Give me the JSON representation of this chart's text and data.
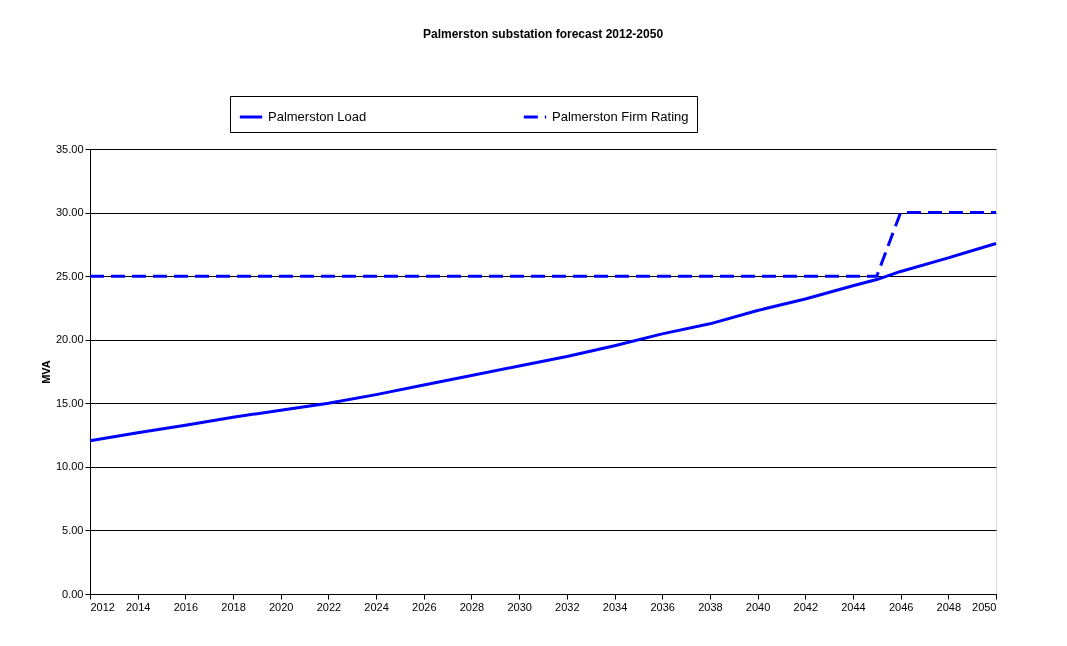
{
  "chart_data": {
    "type": "line",
    "title": "Palmerston substation forecast 2012-2050",
    "ylabel": "MVA",
    "xlim": [
      2012,
      2050
    ],
    "xticks": [
      2012,
      2014,
      2016,
      2018,
      2020,
      2022,
      2024,
      2026,
      2028,
      2030,
      2032,
      2034,
      2036,
      2038,
      2040,
      2042,
      2044,
      2046,
      2048,
      2050
    ],
    "ylim": [
      0,
      35
    ],
    "yticks": [
      {
        "value": 0,
        "label": "0.00"
      },
      {
        "value": 5,
        "label": "5.00"
      },
      {
        "value": 10,
        "label": "10.00"
      },
      {
        "value": 15,
        "label": "15.00"
      },
      {
        "value": 20,
        "label": "20.00"
      },
      {
        "value": 25,
        "label": "25.00"
      },
      {
        "value": 30,
        "label": "30.00"
      },
      {
        "value": 35,
        "label": "35.00"
      }
    ],
    "grid": "y",
    "legend": "top",
    "marker": "none",
    "series": [
      {
        "name": "Palmerston Load",
        "color": "#0000ff",
        "line_style": "solid",
        "x": [
          2012,
          2014,
          2016,
          2018,
          2020,
          2022,
          2024,
          2026,
          2028,
          2030,
          2032,
          2034,
          2036,
          2038,
          2040,
          2042,
          2044,
          2045,
          2046,
          2048,
          2050
        ],
        "values": [
          12.06,
          12.68,
          13.28,
          13.9,
          14.46,
          15.0,
          15.68,
          16.44,
          17.18,
          17.94,
          18.68,
          19.53,
          20.46,
          21.25,
          22.3,
          23.2,
          24.24,
          24.73,
          25.37,
          26.44,
          27.57
        ]
      },
      {
        "name": "Palmerston Firm Rating",
        "color": "#0000ff",
        "line_style": "dashed",
        "x": [
          2012,
          2045,
          2046,
          2050
        ],
        "values": [
          25,
          25,
          30,
          30
        ]
      }
    ]
  }
}
